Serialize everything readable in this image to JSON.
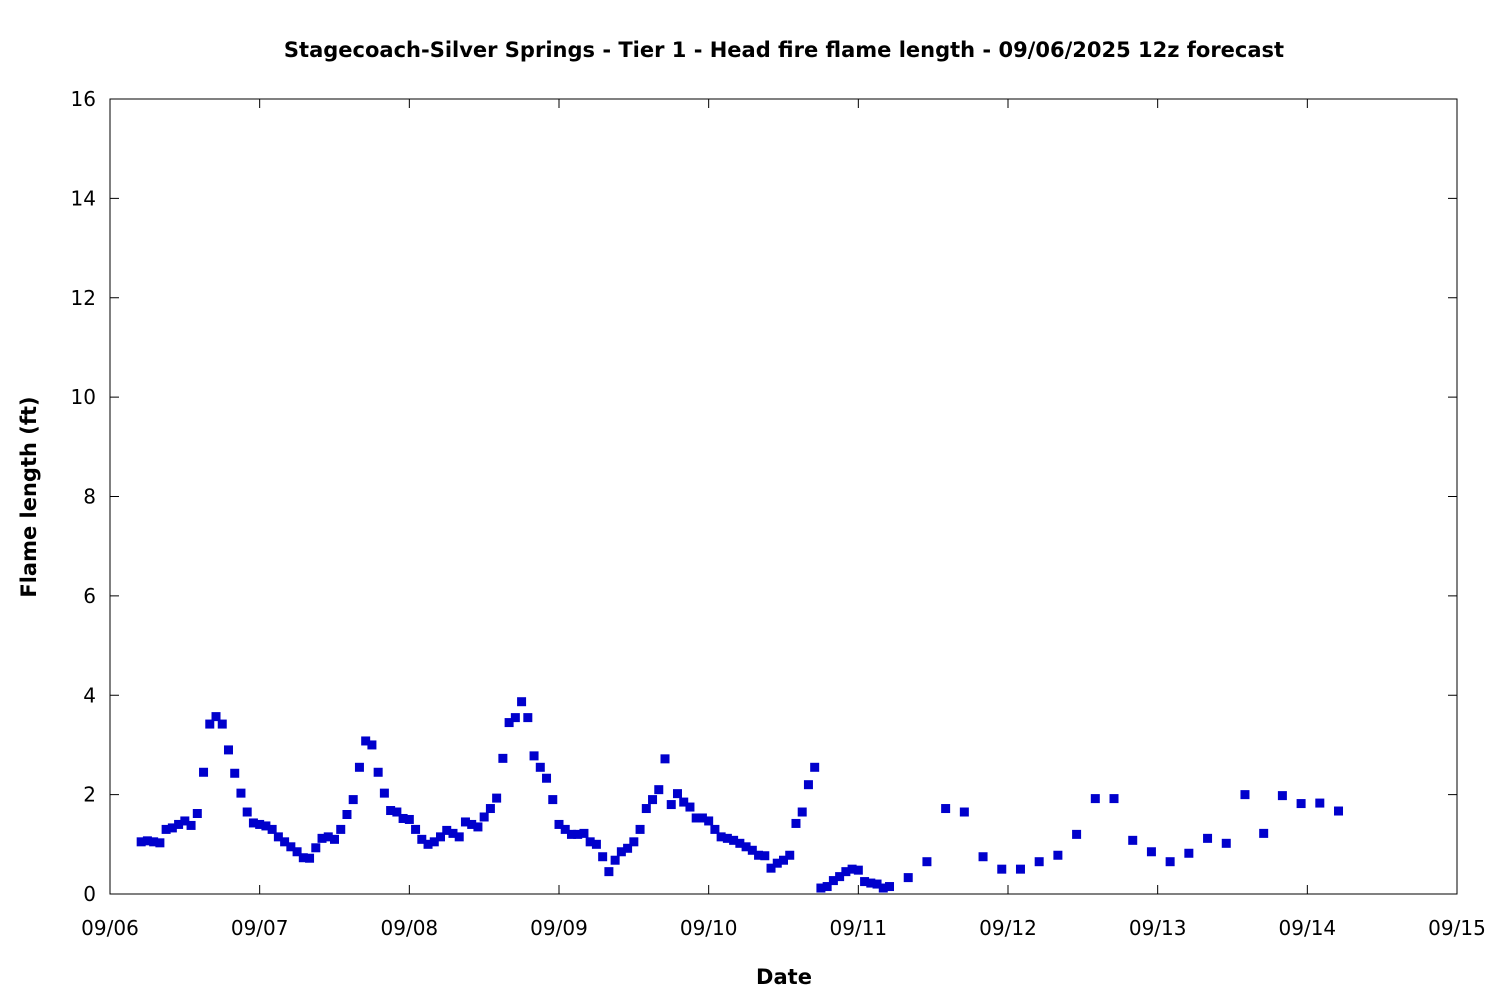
{
  "chart_data": {
    "type": "scatter",
    "title": "Stagecoach-Silver Springs - Tier 1 - Head fire flame length - 09/06/2025 12z forecast",
    "xlabel": "Date",
    "ylabel": "Flame length (ft)",
    "xlim": [
      "09/06",
      "09/15"
    ],
    "ylim": [
      0,
      16
    ],
    "x_ticks": [
      "09/06",
      "09/07",
      "09/08",
      "09/09",
      "09/10",
      "09/11",
      "09/12",
      "09/13",
      "09/14",
      "09/15"
    ],
    "y_ticks": [
      "0",
      "2",
      "4",
      "6",
      "8",
      "10",
      "12",
      "14",
      "16"
    ],
    "grid": false,
    "legend": "none",
    "marker": "square",
    "marker_color": "#0000cc",
    "series": [
      {
        "x": [
          "09/06 05:00",
          "09/06 06:00",
          "09/06 07:00",
          "09/06 08:00",
          "09/06 09:00",
          "09/06 10:00",
          "09/06 11:00",
          "09/06 12:00",
          "09/06 13:00",
          "09/06 14:00",
          "09/06 15:00",
          "09/06 16:00",
          "09/06 17:00",
          "09/06 18:00",
          "09/06 19:00",
          "09/06 20:00",
          "09/06 21:00",
          "09/06 22:00",
          "09/06 23:00",
          "09/07 00:00",
          "09/07 01:00",
          "09/07 02:00",
          "09/07 03:00",
          "09/07 04:00",
          "09/07 05:00",
          "09/07 06:00",
          "09/07 07:00",
          "09/07 08:00",
          "09/07 09:00",
          "09/07 10:00",
          "09/07 11:00",
          "09/07 12:00",
          "09/07 13:00",
          "09/07 14:00",
          "09/07 15:00",
          "09/07 16:00",
          "09/07 17:00",
          "09/07 18:00",
          "09/07 19:00",
          "09/07 20:00",
          "09/07 21:00",
          "09/07 22:00",
          "09/07 23:00",
          "09/08 00:00",
          "09/08 01:00",
          "09/08 02:00",
          "09/08 03:00",
          "09/08 04:00",
          "09/08 05:00",
          "09/08 06:00",
          "09/08 07:00",
          "09/08 08:00",
          "09/08 09:00",
          "09/08 10:00",
          "09/08 11:00",
          "09/08 12:00",
          "09/08 13:00",
          "09/08 14:00",
          "09/08 15:00",
          "09/08 16:00",
          "09/08 17:00",
          "09/08 18:00",
          "09/08 19:00",
          "09/08 20:00",
          "09/08 21:00",
          "09/08 22:00",
          "09/08 23:00",
          "09/09 00:00",
          "09/09 01:00",
          "09/09 02:00",
          "09/09 03:00",
          "09/09 04:00",
          "09/09 05:00",
          "09/09 06:00",
          "09/09 07:00",
          "09/09 08:00",
          "09/09 09:00",
          "09/09 10:00",
          "09/09 11:00",
          "09/09 12:00",
          "09/09 13:00",
          "09/09 14:00",
          "09/09 15:00",
          "09/09 16:00",
          "09/09 17:00",
          "09/09 18:00",
          "09/09 19:00",
          "09/09 20:00",
          "09/09 21:00",
          "09/09 22:00",
          "09/09 23:00",
          "09/10 00:00",
          "09/10 01:00",
          "09/10 02:00",
          "09/10 03:00",
          "09/10 04:00",
          "09/10 05:00",
          "09/10 06:00",
          "09/10 07:00",
          "09/10 08:00",
          "09/10 09:00",
          "09/10 10:00",
          "09/10 11:00",
          "09/10 12:00",
          "09/10 13:00",
          "09/10 14:00",
          "09/10 15:00",
          "09/10 16:00",
          "09/10 17:00",
          "09/10 18:00",
          "09/10 19:00",
          "09/10 20:00",
          "09/10 21:00",
          "09/10 22:00",
          "09/10 23:00",
          "09/11 00:00",
          "09/11 01:00",
          "09/11 02:00",
          "09/11 03:00",
          "09/11 04:00",
          "09/11 05:00",
          "09/11 08:00",
          "09/11 11:00",
          "09/11 14:00",
          "09/11 17:00",
          "09/11 20:00",
          "09/11 23:00",
          "09/12 02:00",
          "09/12 05:00",
          "09/12 08:00",
          "09/12 11:00",
          "09/12 14:00",
          "09/12 17:00",
          "09/12 20:00",
          "09/12 23:00",
          "09/13 02:00",
          "09/13 05:00",
          "09/13 08:00",
          "09/13 11:00",
          "09/13 14:00",
          "09/13 17:00",
          "09/13 20:00",
          "09/13 23:00",
          "09/14 02:00",
          "09/14 05:00"
        ],
        "y": [
          1.05,
          1.07,
          1.05,
          1.03,
          1.3,
          1.33,
          1.4,
          1.47,
          1.38,
          1.62,
          2.45,
          3.42,
          3.57,
          3.42,
          2.9,
          2.43,
          2.03,
          1.65,
          1.43,
          1.4,
          1.37,
          1.3,
          1.15,
          1.05,
          0.95,
          0.85,
          0.73,
          0.72,
          0.93,
          1.12,
          1.15,
          1.1,
          1.3,
          1.6,
          1.9,
          2.55,
          3.08,
          3.0,
          2.45,
          2.03,
          1.68,
          1.65,
          1.52,
          1.5,
          1.3,
          1.1,
          1.0,
          1.05,
          1.15,
          1.28,
          1.22,
          1.15,
          1.45,
          1.4,
          1.35,
          1.55,
          1.72,
          1.93,
          2.73,
          3.45,
          3.55,
          3.87,
          3.55,
          2.78,
          2.55,
          2.33,
          1.9,
          1.4,
          1.3,
          1.2,
          1.2,
          1.22,
          1.05,
          1.0,
          0.75,
          0.45,
          0.68,
          0.85,
          0.92,
          1.05,
          1.3,
          1.72,
          1.9,
          2.1,
          2.72,
          1.8,
          2.02,
          1.85,
          1.75,
          1.53,
          1.53,
          1.47,
          1.3,
          1.15,
          1.12,
          1.08,
          1.02,
          0.95,
          0.88,
          0.78,
          0.77,
          0.52,
          0.62,
          0.68,
          0.78,
          1.42,
          1.65,
          2.2,
          2.55,
          0.12,
          0.15,
          0.27,
          0.35,
          0.45,
          0.5,
          0.48,
          0.25,
          0.22,
          0.2,
          0.12,
          0.15,
          0.33,
          0.65,
          1.72,
          1.65,
          0.75,
          0.5,
          0.5,
          0.65,
          0.78,
          1.2,
          1.92,
          1.92,
          1.08,
          0.85,
          0.65,
          0.82,
          1.12,
          1.02,
          2.0,
          1.22,
          1.98,
          1.82,
          1.83,
          1.67
        ]
      }
    ]
  }
}
